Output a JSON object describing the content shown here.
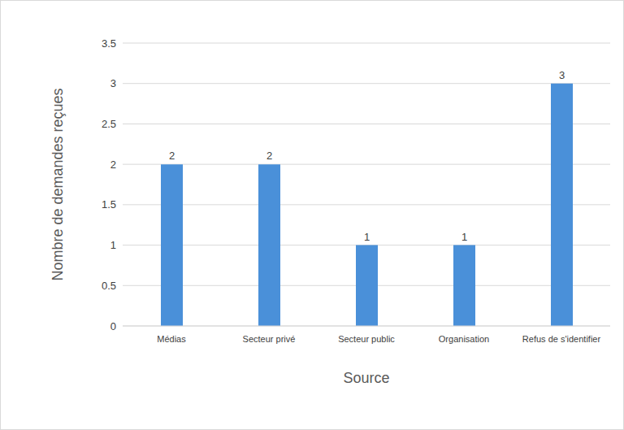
{
  "chart_data": {
    "type": "bar",
    "x_label": "Source",
    "y_label": "Nombre de demandes reçues",
    "categories": [
      "Médias",
      "Secteur privé",
      "Secteur public",
      "Organisation",
      "Refus de s'identifier"
    ],
    "values": [
      2,
      2,
      1,
      1,
      3
    ],
    "color": "#4a90d9",
    "ylim": [
      0,
      3.5
    ],
    "yticks": [
      0,
      0.5,
      1,
      1.5,
      2,
      2.5,
      3,
      3.5
    ],
    "grid": true,
    "data_labels": true
  }
}
